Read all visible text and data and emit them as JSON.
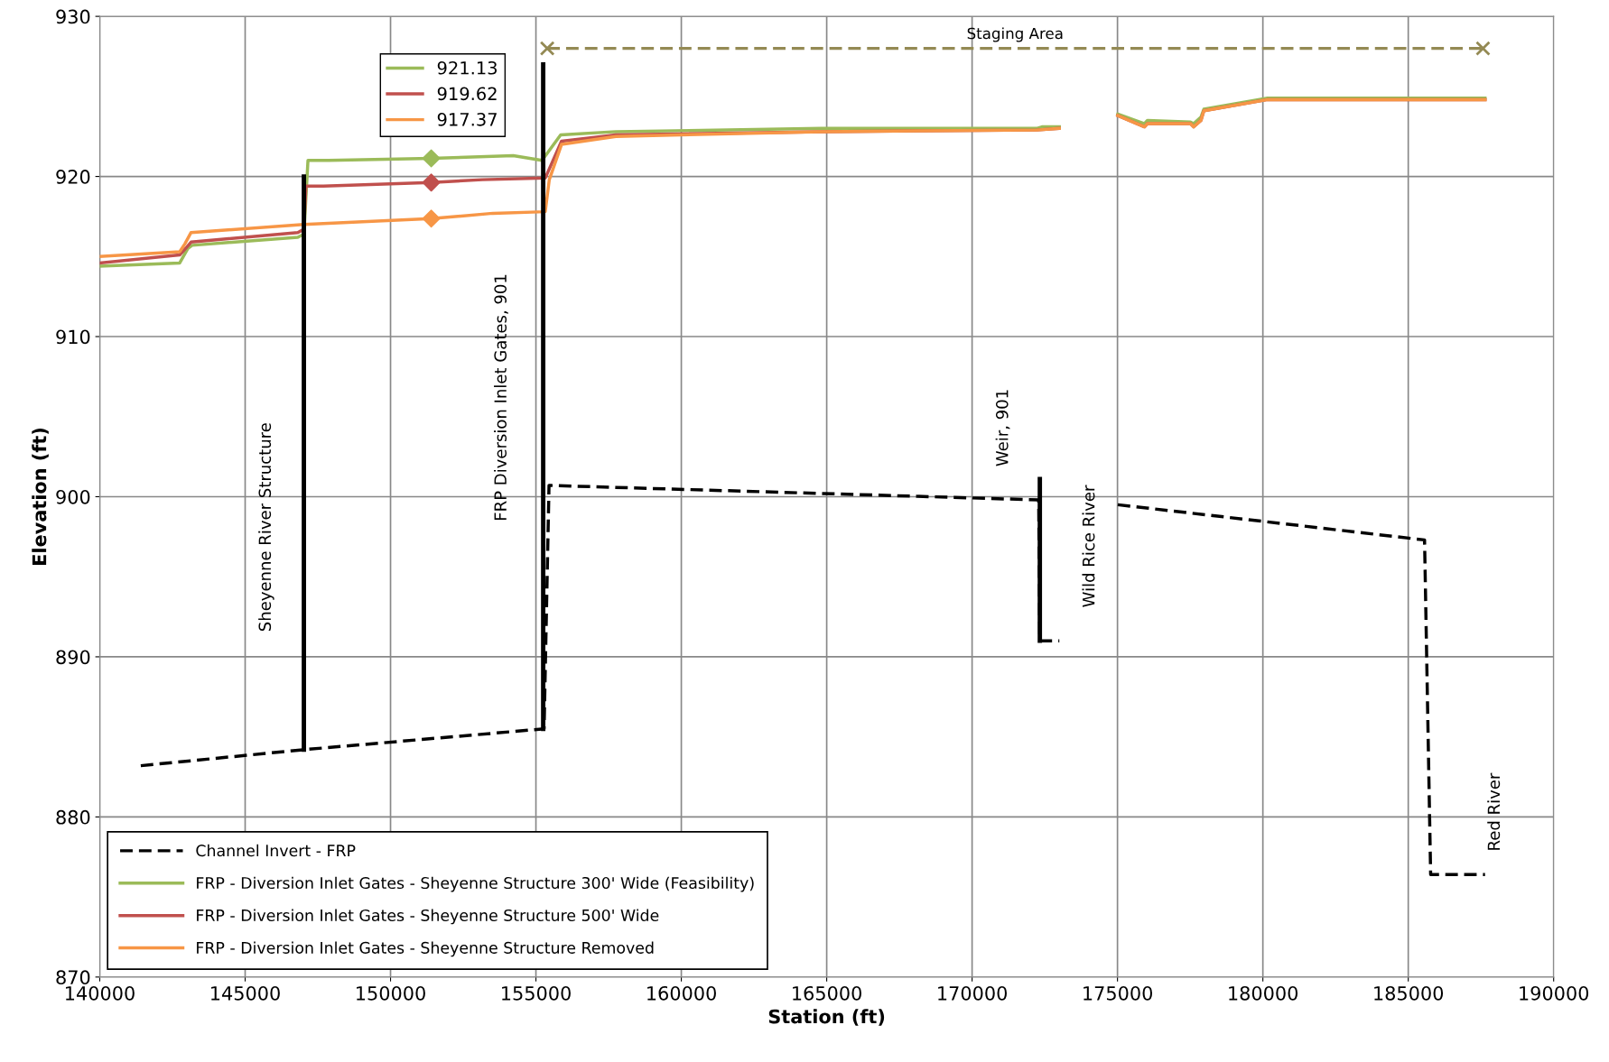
{
  "chart_data": {
    "type": "line",
    "xlabel": "Station (ft)",
    "ylabel": "Elevation (ft)",
    "xlim": [
      140000,
      190000
    ],
    "xticks": [
      140000,
      145000,
      150000,
      155000,
      160000,
      165000,
      170000,
      175000,
      180000,
      185000,
      190000
    ],
    "ylim": [
      870,
      930
    ],
    "yticks": [
      870,
      880,
      890,
      900,
      910,
      920,
      930
    ],
    "grid": true,
    "legend": "bottom left",
    "series": [
      {
        "name": "Channel Invert - FRP",
        "color": "#000000",
        "line_style": "dashed",
        "x": [
          141411,
          147022,
          155280,
          155450,
          155520,
          172290,
          172330,
          173000,
          174000,
          175010,
          185560,
          185770,
          187640
        ],
        "values": [
          883.2,
          884.2,
          885.5,
          900.7,
          900.7,
          899.8,
          891.0,
          891.0,
          null,
          899.5,
          897.3,
          876.4,
          876.4
        ]
      },
      {
        "name": "FRP - Diversion Inlet Gates - Sheyenne Structure 300' Wide (Feasibility)",
        "color": "#9bbb59",
        "x": [
          140000,
          142750,
          143030,
          143175,
          146810,
          147022,
          147160,
          147870,
          151400,
          154220,
          155210,
          155850,
          157750,
          164810,
          172220,
          172400,
          173000,
          174000,
          175010,
          175930,
          176030,
          177510,
          177620,
          177870,
          177970,
          180160,
          185070,
          185740,
          187640
        ],
        "values": [
          914.4,
          914.6,
          915.5,
          915.7,
          916.2,
          916.4,
          921.0,
          921.0,
          921.13,
          921.3,
          921.0,
          922.6,
          922.8,
          923.0,
          923.0,
          923.1,
          923.1,
          null,
          923.9,
          923.3,
          923.5,
          923.4,
          923.3,
          923.7,
          924.2,
          924.9,
          924.9,
          924.9,
          924.9
        ]
      },
      {
        "name": "FRP - Diversion Inlet Gates - Sheyenne Structure 500' Wide",
        "color": "#c0504d",
        "x": [
          140000,
          142750,
          143000,
          143140,
          146810,
          147020,
          147090,
          147690,
          151400,
          153160,
          155320,
          155880,
          157750,
          164810,
          172220,
          173000,
          174000,
          175010,
          175930,
          176030,
          177510,
          177620,
          177870,
          177970,
          180160,
          185070,
          187640
        ],
        "values": [
          914.6,
          915.1,
          915.6,
          915.9,
          916.5,
          916.7,
          919.4,
          919.4,
          919.62,
          919.8,
          919.9,
          922.2,
          922.6,
          922.8,
          922.9,
          923.0,
          null,
          923.8,
          923.1,
          923.3,
          923.3,
          923.1,
          923.5,
          924.1,
          924.8,
          924.8,
          924.8
        ]
      },
      {
        "name": "FRP - Diversion Inlet Gates - Sheyenne Structure Removed",
        "color": "#f79646",
        "x": [
          140000,
          142750,
          142930,
          143140,
          147020,
          151400,
          153520,
          155320,
          155460,
          155880,
          157750,
          164810,
          172220,
          173000,
          174000,
          175010,
          175930,
          176030,
          177510,
          177620,
          177870,
          177970,
          180160,
          185070,
          187640
        ],
        "values": [
          915.0,
          915.3,
          915.8,
          916.5,
          917.0,
          917.37,
          917.7,
          917.8,
          919.8,
          922.0,
          922.5,
          922.8,
          922.9,
          923.0,
          null,
          923.8,
          923.1,
          923.3,
          923.3,
          923.1,
          923.5,
          924.1,
          924.8,
          924.8,
          924.8
        ]
      },
      {
        "name": "921.13",
        "type": "scatter",
        "marker": "diamond",
        "color": "#9bbb59",
        "x": [
          151400
        ],
        "values": [
          921.13
        ]
      },
      {
        "name": "919.62",
        "type": "scatter",
        "marker": "diamond",
        "color": "#c0504d",
        "x": [
          151400
        ],
        "values": [
          919.62
        ]
      },
      {
        "name": "917.37",
        "type": "scatter",
        "marker": "diamond",
        "color": "#f79646",
        "x": [
          151400
        ],
        "values": [
          917.37
        ]
      },
      {
        "name": "Staging Area",
        "color": "#948a54",
        "line_style": "dashed",
        "marker": "cross",
        "x": [
          155390,
          187570
        ],
        "values": [
          928.0,
          928.0
        ]
      },
      {
        "color": "#000000",
        "x": [
          147020,
          147020,
          147020
        ],
        "values": [
          884.2,
          896.7,
          920.0
        ]
      },
      {
        "color": "#000000",
        "x": [
          155250,
          155250,
          155250
        ],
        "values": [
          885.5,
          901.0,
          927.0
        ]
      },
      {
        "color": "#000000",
        "x": [
          172330,
          172330
        ],
        "values": [
          891.0,
          901.1
        ]
      }
    ],
    "annotations": [
      {
        "text": "Sheyenne River Structure",
        "x": 147020,
        "y": 898.1
      },
      {
        "text": "FRP Diversion Inlet Gates, 901",
        "x": 155250,
        "y": 906.2
      },
      {
        "text": "Weir, 901",
        "x": 172330,
        "y": 901.1
      },
      {
        "text": "Wild Rice River",
        "x": 172330,
        "y": 896.9
      },
      "Red River"
    ]
  }
}
